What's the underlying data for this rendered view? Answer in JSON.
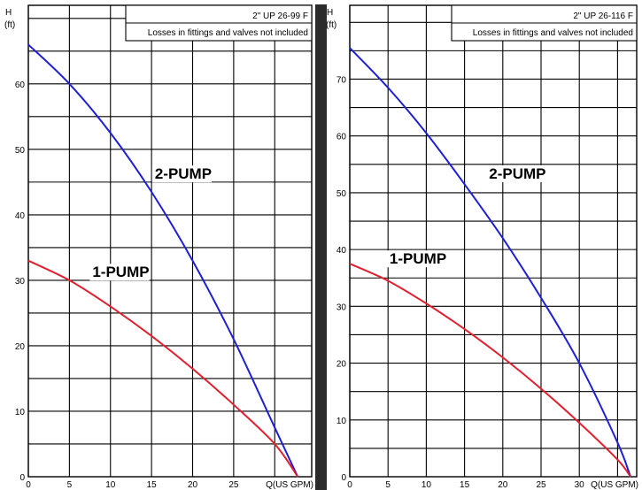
{
  "chart_data": [
    {
      "type": "line",
      "model_label": "2\" UP 26-99 F",
      "note_label": "Losses in fittings and valves not included",
      "ylabel_top": "H",
      "ylabel_unit": "(ft)",
      "xlabel": "Q(US GPM)",
      "xlim": [
        0,
        34.5
      ],
      "ylim": [
        0,
        72
      ],
      "x_ticks": [
        0,
        5,
        10,
        15,
        20,
        25
      ],
      "x_tick_labels": [
        "0",
        "5",
        "10",
        "15",
        "20",
        "25"
      ],
      "y_ticks": [
        0,
        10,
        20,
        30,
        40,
        50,
        60
      ],
      "y_tick_labels": [
        "0",
        "10",
        "20",
        "30",
        "40",
        "50",
        "60"
      ],
      "grid_x": [
        0,
        5,
        10,
        15,
        20,
        25,
        30
      ],
      "grid_y": [
        0,
        5,
        10,
        15,
        20,
        25,
        30,
        35,
        40,
        45,
        50,
        55,
        60,
        65,
        70
      ],
      "series": [
        {
          "name": "2-PUMP",
          "color": "#1f1fd6",
          "x": [
            0,
            5,
            10,
            15,
            20,
            25,
            30,
            32.8
          ],
          "y": [
            66,
            60,
            52.5,
            43.5,
            33,
            21,
            7.5,
            0
          ]
        },
        {
          "name": "1-PUMP",
          "color": "#e0202f",
          "x": [
            0,
            5,
            10,
            15,
            20,
            25,
            30,
            32.8
          ],
          "y": [
            33,
            30,
            26,
            21.5,
            16.5,
            11,
            5,
            0
          ]
        }
      ],
      "labels": [
        {
          "text": "2-PUMP",
          "x": 15.4,
          "y": 45.5
        },
        {
          "text": "1-PUMP",
          "x": 7.8,
          "y": 30.5
        }
      ]
    },
    {
      "type": "line",
      "model_label": "2\" UP 26-116 F",
      "note_label": "Losses in fittings and valves not included",
      "ylabel_top": "H",
      "ylabel_unit": "(ft)",
      "xlabel": "Q(US GPM)",
      "xlim": [
        0,
        37.5
      ],
      "ylim": [
        0,
        83
      ],
      "x_ticks": [
        0,
        5,
        10,
        15,
        20,
        25,
        30
      ],
      "x_tick_labels": [
        "0",
        "5",
        "10",
        "15",
        "20",
        "25",
        "30"
      ],
      "y_ticks": [
        0,
        10,
        20,
        30,
        40,
        50,
        60,
        70
      ],
      "y_tick_labels": [
        "0",
        "10",
        "20",
        "30",
        "40",
        "50",
        "60",
        "70"
      ],
      "grid_x": [
        0,
        5,
        10,
        15,
        20,
        25,
        30,
        35
      ],
      "grid_y": [
        0,
        5,
        10,
        15,
        20,
        25,
        30,
        35,
        40,
        45,
        50,
        55,
        60,
        65,
        70,
        75,
        80
      ],
      "series": [
        {
          "name": "2-PUMP",
          "color": "#1f1fd6",
          "x": [
            0,
            5,
            10,
            15,
            20,
            25,
            30,
            35,
            36.7
          ],
          "y": [
            75.5,
            68.5,
            60.5,
            51.5,
            42,
            31.5,
            20,
            6,
            0
          ]
        },
        {
          "name": "1-PUMP",
          "color": "#e0202f",
          "x": [
            0,
            5,
            10,
            15,
            20,
            25,
            30,
            35,
            36.7
          ],
          "y": [
            37.5,
            34.5,
            30.5,
            26,
            21,
            15.5,
            9.5,
            3,
            0
          ]
        }
      ],
      "labels": [
        {
          "text": "2-PUMP",
          "x": 18.2,
          "y": 52.5
        },
        {
          "text": "1-PUMP",
          "x": 5.2,
          "y": 37.5
        }
      ]
    }
  ]
}
